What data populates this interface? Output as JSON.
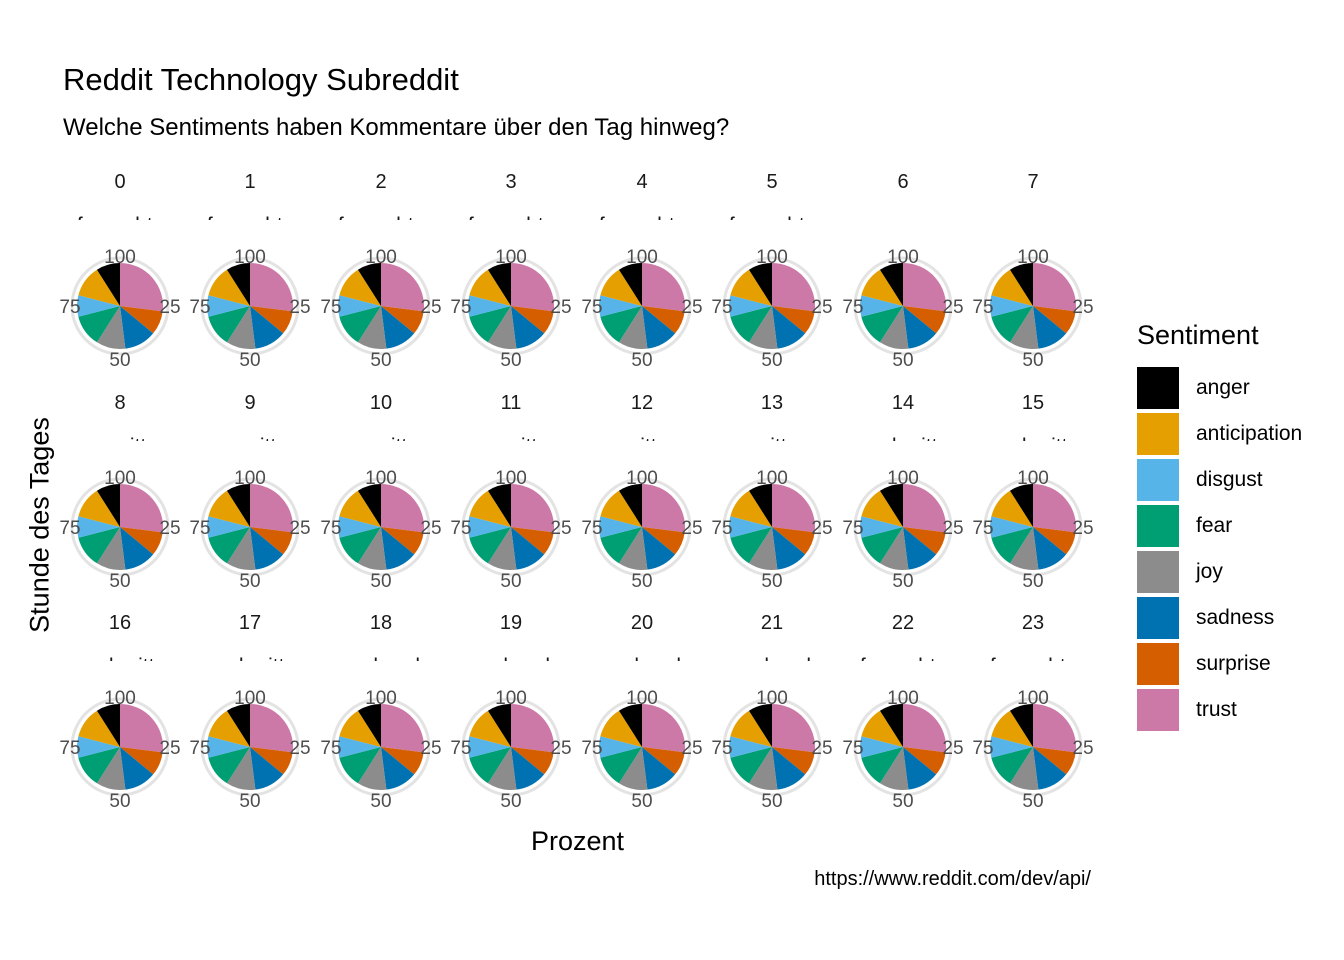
{
  "title": "Reddit Technology Subreddit",
  "subtitle": "Welche Sentiments haben Kommentare über den Tag hinweg?",
  "caption": "https://www.reddit.com/dev/api/",
  "chart_data": {
    "type": "pie",
    "xlabel": "Prozent",
    "ylabel": "Stunde des Tages",
    "legend_title": "Sentiment",
    "legend_position": "right",
    "axis_ticks": [
      "100",
      "25",
      "50",
      "75"
    ],
    "categories": [
      "anger",
      "anticipation",
      "disgust",
      "fear",
      "joy",
      "sadness",
      "surprise",
      "trust"
    ],
    "colors": {
      "anger": "#000000",
      "anticipation": "#E69F00",
      "disgust": "#56B4E9",
      "fear": "#009E73",
      "joy": "#8C8C8C",
      "sadness": "#0072B2",
      "surprise": "#D55E00",
      "trust": "#CC79A7"
    },
    "panels": [
      {
        "hour": "0",
        "period": "f - nachts",
        "values": [
          9,
          12,
          8,
          12,
          11,
          12,
          9,
          27
        ]
      },
      {
        "hour": "1",
        "period": "f - nachts",
        "values": [
          9,
          12,
          8,
          12,
          11,
          12,
          9,
          27
        ]
      },
      {
        "hour": "2",
        "period": "f - nachts",
        "values": [
          9,
          12,
          8,
          12,
          11,
          12,
          9,
          27
        ]
      },
      {
        "hour": "3",
        "period": "f - nachts",
        "values": [
          9,
          12,
          8,
          12,
          11,
          12,
          9,
          27
        ]
      },
      {
        "hour": "4",
        "period": "f - nachts",
        "values": [
          9,
          12,
          8,
          12,
          11,
          12,
          9,
          27
        ]
      },
      {
        "hour": "5",
        "period": "f - nachts",
        "values": [
          9,
          12,
          8,
          12,
          11,
          12,
          9,
          27
        ]
      },
      {
        "hour": "6",
        "period": "a - morgens",
        "values": [
          9,
          12,
          8,
          12,
          11,
          12,
          9,
          27
        ]
      },
      {
        "hour": "7",
        "period": "a - morgens",
        "values": [
          9,
          12,
          8,
          12,
          11,
          12,
          9,
          27
        ]
      },
      {
        "hour": "8",
        "period": "- vormittag",
        "values": [
          9,
          12,
          8,
          12,
          11,
          12,
          9,
          27
        ]
      },
      {
        "hour": "9",
        "period": "- vormittag",
        "values": [
          9,
          12,
          8,
          12,
          11,
          12,
          9,
          27
        ]
      },
      {
        "hour": "10",
        "period": "- vormittag",
        "values": [
          9,
          12,
          8,
          12,
          11,
          12,
          9,
          27
        ]
      },
      {
        "hour": "11",
        "period": "- vormittag",
        "values": [
          9,
          12,
          8,
          12,
          11,
          12,
          9,
          27
        ]
      },
      {
        "hour": "12",
        "period": "c - mittags",
        "values": [
          9,
          12,
          8,
          12,
          11,
          12,
          9,
          27
        ]
      },
      {
        "hour": "13",
        "period": "c - mittags",
        "values": [
          9,
          12,
          8,
          12,
          11,
          12,
          9,
          27
        ]
      },
      {
        "hour": "14",
        "period": "- nachmittag",
        "values": [
          9,
          12,
          8,
          12,
          11,
          12,
          9,
          27
        ]
      },
      {
        "hour": "15",
        "period": "- nachmittag",
        "values": [
          9,
          12,
          8,
          12,
          11,
          12,
          9,
          27
        ]
      },
      {
        "hour": "16",
        "period": "- nachmittag",
        "values": [
          9,
          12,
          8,
          12,
          11,
          12,
          9,
          27
        ]
      },
      {
        "hour": "17",
        "period": "- nachmittag",
        "values": [
          9,
          12,
          8,
          12,
          11,
          12,
          9,
          27
        ]
      },
      {
        "hour": "18",
        "period": "e - abends",
        "values": [
          9,
          12,
          8,
          12,
          11,
          12,
          9,
          27
        ]
      },
      {
        "hour": "19",
        "period": "e - abends",
        "values": [
          9,
          12,
          8,
          12,
          11,
          12,
          9,
          27
        ]
      },
      {
        "hour": "20",
        "period": "e - abends",
        "values": [
          9,
          12,
          8,
          12,
          11,
          12,
          9,
          27
        ]
      },
      {
        "hour": "21",
        "period": "e - abends",
        "values": [
          9,
          12,
          8,
          12,
          11,
          12,
          9,
          27
        ]
      },
      {
        "hour": "22",
        "period": "f - nachts",
        "values": [
          9,
          12,
          8,
          12,
          11,
          12,
          9,
          27
        ]
      },
      {
        "hour": "23",
        "period": "f - nachts",
        "values": [
          9,
          12,
          8,
          12,
          11,
          12,
          9,
          27
        ]
      }
    ]
  }
}
